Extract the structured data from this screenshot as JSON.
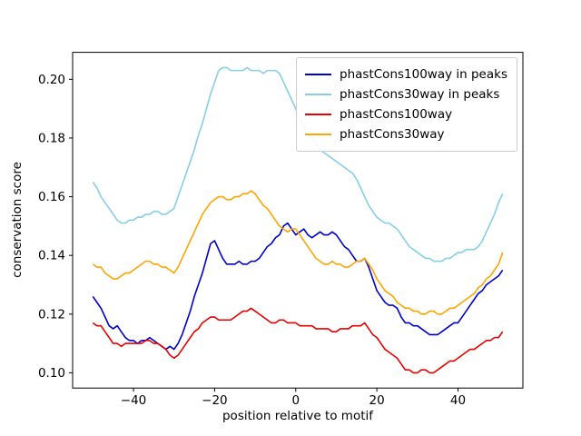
{
  "chart_data": {
    "type": "line",
    "title": "",
    "xlabel": "position relative to motif",
    "ylabel": "conservation score",
    "xlim": [
      -55,
      56
    ],
    "ylim": [
      0.0948,
      0.2092
    ],
    "xticks": [
      -40,
      -20,
      0,
      20,
      40
    ],
    "xtick_labels": [
      "−40",
      "−20",
      "0",
      "20",
      "40"
    ],
    "yticks": [
      0.1,
      0.12,
      0.14,
      0.16,
      0.18,
      0.2
    ],
    "ytick_labels": [
      "0.10",
      "0.12",
      "0.14",
      "0.16",
      "0.18",
      "0.20"
    ],
    "grid": false,
    "legend_position": "upper right",
    "x": [
      -50,
      -49,
      -48,
      -47,
      -46,
      -45,
      -44,
      -43,
      -42,
      -41,
      -40,
      -39,
      -38,
      -37,
      -36,
      -35,
      -34,
      -33,
      -32,
      -31,
      -30,
      -29,
      -28,
      -27,
      -26,
      -25,
      -24,
      -23,
      -22,
      -21,
      -20,
      -19,
      -18,
      -17,
      -16,
      -15,
      -14,
      -13,
      -12,
      -11,
      -10,
      -9,
      -8,
      -7,
      -6,
      -5,
      -4,
      -3,
      -2,
      -1,
      0,
      1,
      2,
      3,
      4,
      5,
      6,
      7,
      8,
      9,
      10,
      11,
      12,
      13,
      14,
      15,
      16,
      17,
      18,
      19,
      20,
      21,
      22,
      23,
      24,
      25,
      26,
      27,
      28,
      29,
      30,
      31,
      32,
      33,
      34,
      35,
      36,
      37,
      38,
      39,
      40,
      41,
      42,
      43,
      44,
      45,
      46,
      47,
      48,
      49,
      50,
      51
    ],
    "series": [
      {
        "name": "phastCons100way in peaks",
        "color": "#0000cc",
        "values": [
          0.126,
          0.124,
          0.122,
          0.119,
          0.116,
          0.115,
          0.116,
          0.114,
          0.112,
          0.111,
          0.111,
          0.11,
          0.111,
          0.111,
          0.112,
          0.111,
          0.11,
          0.109,
          0.108,
          0.109,
          0.108,
          0.11,
          0.113,
          0.117,
          0.121,
          0.126,
          0.13,
          0.134,
          0.139,
          0.144,
          0.145,
          0.142,
          0.139,
          0.137,
          0.137,
          0.137,
          0.138,
          0.137,
          0.137,
          0.138,
          0.138,
          0.139,
          0.141,
          0.143,
          0.144,
          0.146,
          0.147,
          0.15,
          0.151,
          0.149,
          0.147,
          0.148,
          0.149,
          0.147,
          0.146,
          0.147,
          0.148,
          0.147,
          0.147,
          0.148,
          0.147,
          0.145,
          0.143,
          0.142,
          0.14,
          0.138,
          0.138,
          0.139,
          0.136,
          0.132,
          0.128,
          0.126,
          0.124,
          0.123,
          0.123,
          0.122,
          0.119,
          0.117,
          0.117,
          0.116,
          0.116,
          0.115,
          0.114,
          0.113,
          0.113,
          0.113,
          0.114,
          0.115,
          0.116,
          0.117,
          0.117,
          0.119,
          0.121,
          0.123,
          0.125,
          0.127,
          0.128,
          0.13,
          0.131,
          0.132,
          0.133,
          0.135
        ]
      },
      {
        "name": "phastCons30way in peaks",
        "color": "#87ceeb",
        "values": [
          0.165,
          0.163,
          0.16,
          0.158,
          0.156,
          0.154,
          0.152,
          0.151,
          0.151,
          0.152,
          0.152,
          0.153,
          0.153,
          0.154,
          0.154,
          0.155,
          0.155,
          0.154,
          0.154,
          0.155,
          0.156,
          0.16,
          0.164,
          0.168,
          0.172,
          0.176,
          0.181,
          0.185,
          0.19,
          0.195,
          0.199,
          0.203,
          0.204,
          0.204,
          0.203,
          0.203,
          0.203,
          0.203,
          0.204,
          0.203,
          0.203,
          0.203,
          0.202,
          0.203,
          0.203,
          0.203,
          0.202,
          0.199,
          0.196,
          0.193,
          0.19,
          0.187,
          0.184,
          0.181,
          0.18,
          0.178,
          0.176,
          0.175,
          0.174,
          0.173,
          0.172,
          0.171,
          0.17,
          0.169,
          0.168,
          0.166,
          0.163,
          0.16,
          0.157,
          0.155,
          0.153,
          0.152,
          0.151,
          0.151,
          0.15,
          0.149,
          0.147,
          0.145,
          0.143,
          0.142,
          0.141,
          0.14,
          0.139,
          0.139,
          0.138,
          0.138,
          0.138,
          0.139,
          0.139,
          0.14,
          0.141,
          0.141,
          0.142,
          0.142,
          0.142,
          0.143,
          0.145,
          0.148,
          0.151,
          0.154,
          0.158,
          0.161
        ]
      },
      {
        "name": "phastCons100way",
        "color": "#e80000",
        "values": [
          0.117,
          0.116,
          0.116,
          0.114,
          0.112,
          0.11,
          0.11,
          0.109,
          0.11,
          0.11,
          0.11,
          0.11,
          0.11,
          0.111,
          0.111,
          0.11,
          0.11,
          0.109,
          0.108,
          0.106,
          0.105,
          0.106,
          0.108,
          0.11,
          0.112,
          0.114,
          0.115,
          0.117,
          0.118,
          0.119,
          0.119,
          0.118,
          0.118,
          0.118,
          0.118,
          0.119,
          0.12,
          0.121,
          0.121,
          0.122,
          0.121,
          0.12,
          0.119,
          0.118,
          0.117,
          0.117,
          0.118,
          0.118,
          0.117,
          0.117,
          0.117,
          0.116,
          0.116,
          0.116,
          0.116,
          0.115,
          0.115,
          0.115,
          0.115,
          0.114,
          0.114,
          0.115,
          0.115,
          0.115,
          0.116,
          0.116,
          0.116,
          0.117,
          0.115,
          0.113,
          0.112,
          0.11,
          0.108,
          0.107,
          0.106,
          0.105,
          0.103,
          0.101,
          0.101,
          0.1,
          0.1,
          0.101,
          0.101,
          0.1,
          0.1,
          0.101,
          0.102,
          0.103,
          0.104,
          0.104,
          0.105,
          0.106,
          0.107,
          0.108,
          0.108,
          0.109,
          0.11,
          0.111,
          0.111,
          0.112,
          0.112,
          0.114
        ]
      },
      {
        "name": "phastCons30way",
        "color": "#ffa500",
        "values": [
          0.137,
          0.136,
          0.136,
          0.134,
          0.133,
          0.132,
          0.132,
          0.133,
          0.134,
          0.134,
          0.135,
          0.136,
          0.137,
          0.138,
          0.138,
          0.137,
          0.137,
          0.136,
          0.136,
          0.135,
          0.134,
          0.136,
          0.139,
          0.142,
          0.145,
          0.148,
          0.151,
          0.154,
          0.156,
          0.158,
          0.159,
          0.16,
          0.16,
          0.159,
          0.159,
          0.16,
          0.16,
          0.161,
          0.161,
          0.162,
          0.161,
          0.159,
          0.157,
          0.156,
          0.154,
          0.152,
          0.15,
          0.149,
          0.148,
          0.149,
          0.149,
          0.147,
          0.145,
          0.143,
          0.141,
          0.139,
          0.138,
          0.137,
          0.137,
          0.138,
          0.137,
          0.137,
          0.136,
          0.136,
          0.137,
          0.138,
          0.138,
          0.139,
          0.137,
          0.135,
          0.132,
          0.13,
          0.128,
          0.127,
          0.126,
          0.124,
          0.123,
          0.122,
          0.122,
          0.121,
          0.121,
          0.12,
          0.12,
          0.121,
          0.121,
          0.12,
          0.12,
          0.121,
          0.122,
          0.122,
          0.123,
          0.124,
          0.125,
          0.126,
          0.127,
          0.129,
          0.13,
          0.132,
          0.133,
          0.135,
          0.137,
          0.141
        ]
      }
    ]
  }
}
